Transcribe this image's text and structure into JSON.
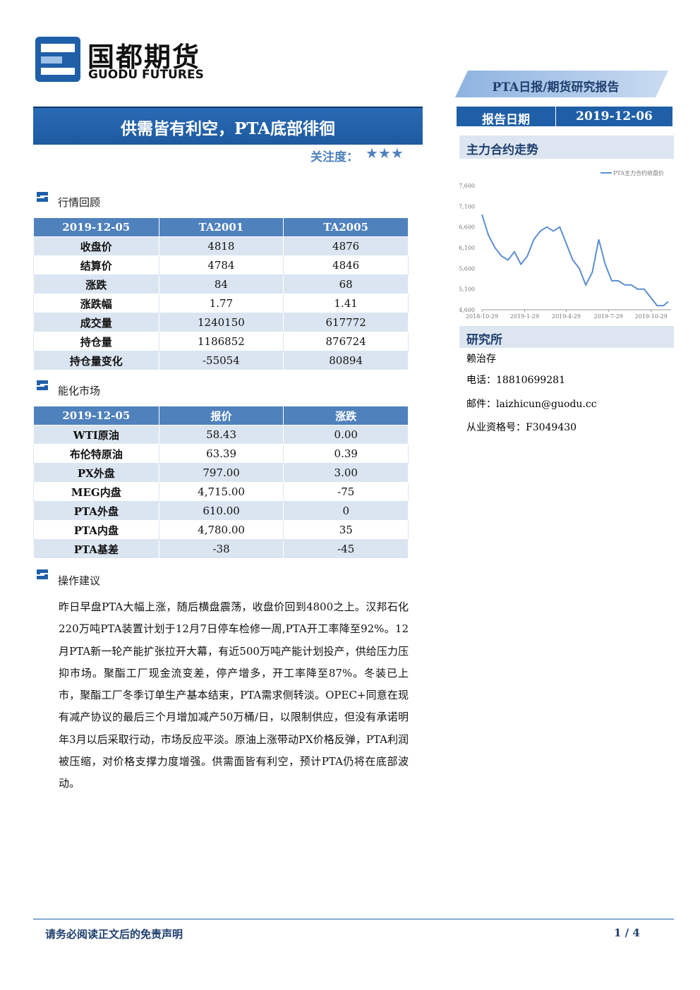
{
  "header": {
    "logo_cn": "国都期货",
    "logo_en": "GUODU FUTURES",
    "report_type": "PTA日报/期货研究报告",
    "title": "供需皆有利空，PTA底部徘徊",
    "attention_label": "关注度：",
    "attention": "★★★",
    "report_date_label": "报告日期",
    "report_date": "2019-12-06"
  },
  "market_review": {
    "title": "行情回顾",
    "table": {
      "header": [
        "2019-12-05",
        "TA2001",
        "TA2005"
      ],
      "rows": [
        [
          "收盘价",
          "4818",
          "4876"
        ],
        [
          "结算价",
          "4784",
          "4846"
        ],
        [
          "涨跌",
          "84",
          "68"
        ],
        [
          "涨跌幅",
          "1.77",
          "1.41"
        ],
        [
          "成交量",
          "1240150",
          "617772"
        ],
        [
          "持仓量",
          "1186852",
          "876724"
        ],
        [
          "持仓量变化",
          "-55054",
          "80894"
        ]
      ]
    }
  },
  "energy_market": {
    "title": "能化市场",
    "table": {
      "header": [
        "2019-12-05",
        "报价",
        "涨跌"
      ],
      "rows": [
        [
          "WTI原油",
          "58.43",
          "0.00"
        ],
        [
          "布伦特原油",
          "63.39",
          "0.39"
        ],
        [
          "PX外盘",
          "797.00",
          "3.00"
        ],
        [
          "MEG内盘",
          "4,715.00",
          "-75"
        ],
        [
          "PTA外盘",
          "610.00",
          "0"
        ],
        [
          "PTA内盘",
          "4,780.00",
          "35"
        ],
        [
          "PTA基差",
          "-38",
          "-45"
        ]
      ]
    }
  },
  "advice": {
    "title": "操作建议",
    "text": "昨日早盘PTA大幅上涨，随后横盘震荡，收盘价回到4800之上。汉邦石化220万吨PTA装置计划于12月7日停车检修一周,PTA开工率降至92%。12月PTA新一轮产能扩张拉开大幕，有近500万吨产能计划投产，供给压力压抑市场。聚酯工厂现金流变差，停产增多，开工率降至87%。冬装已上市，聚酯工厂冬季订单生产基本结束，PTA需求侧转淡。OPEC+同意在现有减产协议的最后三个月增加减产50万桶/日，以限制供应，但没有承诺明年3月以后采取行动，市场反应平淡。原油上涨带动PX价格反弹，PTA利润被压缩，对价格支撑力度增强。供需面皆有利空，预计PTA仍将在底部波动。"
  },
  "chart_section": {
    "title": "主力合约走势"
  },
  "chart_data": {
    "type": "line",
    "series": [
      {
        "name": "PTA主力合约收盘价",
        "color": "#5b8fcf",
        "values": [
          6900,
          6400,
          6100,
          5900,
          5800,
          6000,
          5700,
          5900,
          6300,
          6500,
          6600,
          6500,
          6600,
          6200,
          5800,
          5600,
          5200,
          5500,
          6300,
          5700,
          5300,
          5300,
          5200,
          5200,
          5100,
          5100,
          4900,
          4700,
          4700,
          4800
        ]
      }
    ],
    "x": [
      "2018-10-29",
      "2018-11-12",
      "2018-11-26",
      "2018-12-10",
      "2018-12-24",
      "2019-1-7",
      "2019-1-21",
      "2019-2-4",
      "2019-2-18",
      "2019-3-4",
      "2019-3-18",
      "2019-4-1",
      "2019-4-15",
      "2019-4-29",
      "2019-5-13",
      "2019-5-27",
      "2019-6-10",
      "2019-6-24",
      "2019-7-8",
      "2019-7-22",
      "2019-8-5",
      "2019-8-19",
      "2019-9-2",
      "2019-9-16",
      "2019-9-30",
      "2019-10-14",
      "2019-10-28",
      "2019-11-11",
      "2019-11-25",
      "2019-12-5"
    ],
    "xlim": [
      "2018-10-29",
      "2019-12-5"
    ],
    "xticks": [
      "2018-10-29",
      "2019-1-29",
      "2019-4-29",
      "2019-7-29",
      "2019-10-29"
    ],
    "ylim": [
      4600,
      7600
    ],
    "yticks": [
      {
        "value": 4600,
        "label": "4,600"
      },
      {
        "value": 5100,
        "label": "5,100"
      },
      {
        "value": 5600,
        "label": "5,600"
      },
      {
        "value": 6100,
        "label": "6,100"
      },
      {
        "value": 6600,
        "label": "6,600"
      },
      {
        "value": 7100,
        "label": "7,100"
      },
      {
        "value": 7600,
        "label": "7,600"
      }
    ]
  },
  "research": {
    "title": "研究所",
    "name": "赖治存",
    "phone": "电话：18810699281",
    "email": "邮件：laizhicun@guodu.cc",
    "license": "从业资格号：F3049430"
  },
  "footer": {
    "disclaimer": "请务必阅读正文后的免责声明",
    "page": "1 / 4"
  }
}
